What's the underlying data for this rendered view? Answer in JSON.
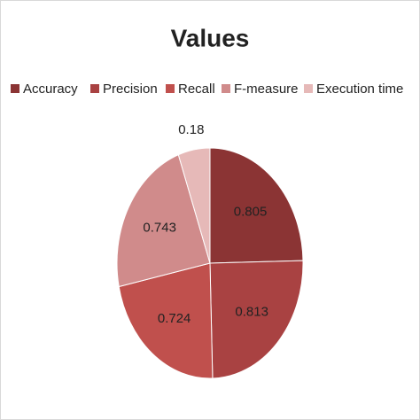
{
  "chart_data": {
    "type": "pie",
    "title": "Values",
    "categories": [
      "Accuracy",
      "Precision",
      "Recall",
      "F-measure",
      "Execution time"
    ],
    "values": [
      0.805,
      0.813,
      0.724,
      0.743,
      0.18
    ],
    "colors": [
      "#8b3434",
      "#a94242",
      "#c0504d",
      "#d08b8b",
      "#e6b9b8"
    ],
    "legend": "top"
  }
}
